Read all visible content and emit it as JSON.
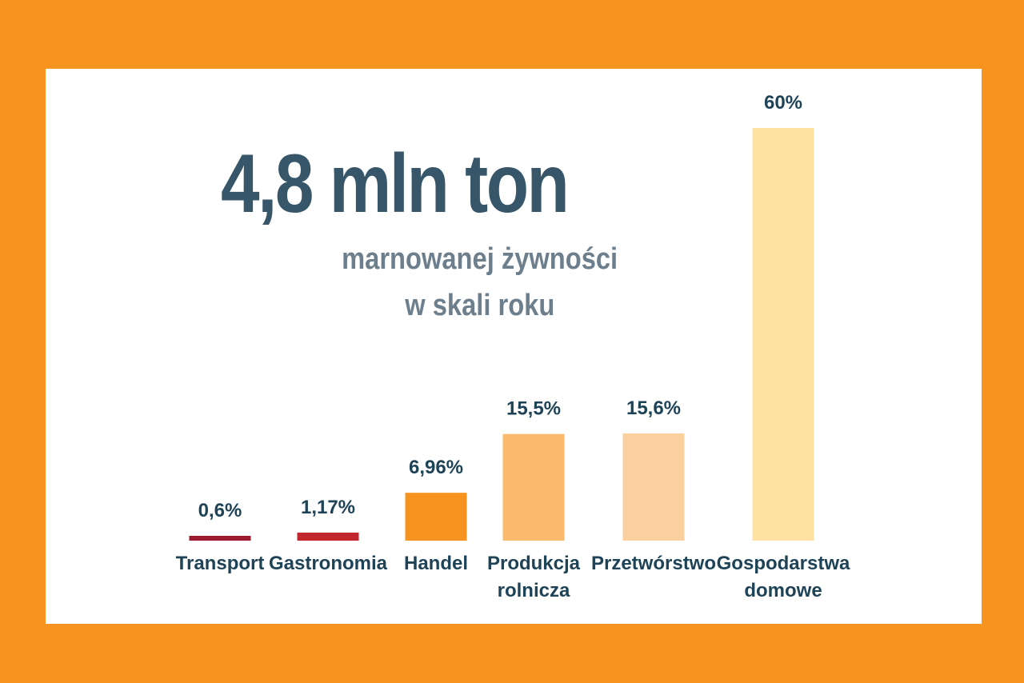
{
  "headline": {
    "title": "4,8  mln ton",
    "subtitle_line1": "marnowanej żywności",
    "subtitle_line2": "w skali roku"
  },
  "colors": {
    "background": "#F7941F",
    "panel": "#FFFFFF",
    "title": "#37566A",
    "subtitle": "#6D7E8C",
    "labels": "#1E4357"
  },
  "chart_data": {
    "type": "bar",
    "categories": [
      [
        "Transport"
      ],
      [
        "Gastronomia"
      ],
      [
        "Handel"
      ],
      [
        "Produkcja",
        "rolnicza"
      ],
      [
        "Przetwórstwo"
      ],
      [
        "Gospodarstwa",
        "domowe"
      ]
    ],
    "values": [
      0.6,
      1.17,
      6.96,
      15.5,
      15.6,
      60
    ],
    "value_labels": [
      "0,6%",
      "1,17%",
      "6,96%",
      "15,5%",
      "15,6%",
      "60%"
    ],
    "bar_colors": [
      "#9B1B30",
      "#C1272D",
      "#F7941F",
      "#FBBA6E",
      "#FCCF9F",
      "#FFE2A3"
    ],
    "unit": "%",
    "ylim": [
      0,
      60
    ],
    "grid": false,
    "legend": "none"
  }
}
